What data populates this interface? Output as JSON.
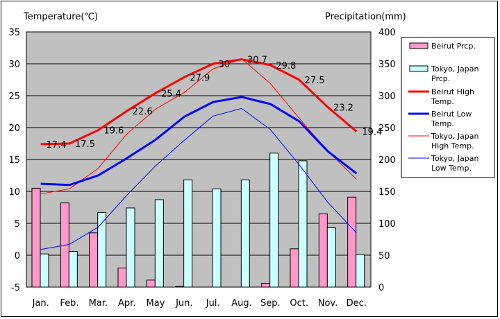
{
  "chart_data": {
    "type": "bar",
    "left_axis_title": "Temperature(℃)",
    "right_axis_title": "Precipitation(mm)",
    "categories": [
      "Jan.",
      "Feb.",
      "Mar.",
      "Apr.",
      "May",
      "Jun.",
      "Jul.",
      "Aug.",
      "Sep.",
      "Oct.",
      "Nov.",
      "Dec."
    ],
    "left_axis": {
      "min": -5,
      "max": 35,
      "ticks": [
        35,
        30,
        25,
        20,
        15,
        10,
        5,
        0,
        -5
      ]
    },
    "right_axis": {
      "min": 0,
      "max": 400,
      "ticks": [
        400,
        350,
        300,
        250,
        200,
        150,
        100,
        50,
        0
      ]
    },
    "grid": true,
    "plot_background": "#c0c0c0",
    "legend_position": "right",
    "series": [
      {
        "name": "Beirut Prcp.",
        "kind": "bar",
        "axis": "right",
        "color": "#ff99cc",
        "values": [
          155,
          132,
          85,
          30,
          11,
          1,
          0,
          0,
          6,
          60,
          115,
          141
        ]
      },
      {
        "name": "Tokyo, Japan Prcp.",
        "kind": "bar",
        "axis": "right",
        "color": "#ccffff",
        "values": [
          52,
          56,
          117,
          124,
          137,
          168,
          154,
          168,
          210,
          198,
          93,
          51
        ]
      },
      {
        "name": "Beirut High Temp.",
        "kind": "line",
        "axis": "left",
        "color": "#ff0000",
        "width": 3,
        "values": [
          17.4,
          17.5,
          19.6,
          22.6,
          25.4,
          27.9,
          30,
          30.7,
          29.8,
          27.5,
          23.2,
          19.4
        ],
        "labels": [
          "17.4",
          "17.5",
          "19.6",
          "22.6",
          "25.4",
          "27.9",
          "30",
          "30.7",
          "29.8",
          "27.5",
          "23.2",
          "19.4"
        ]
      },
      {
        "name": "Beirut Low Temp.",
        "kind": "line",
        "axis": "left",
        "color": "#0000ff",
        "width": 3,
        "values": [
          11.2,
          11,
          12.5,
          15.2,
          18.1,
          21.7,
          24,
          24.8,
          23.7,
          21,
          16.3,
          12.8
        ]
      },
      {
        "name": "Tokyo, Japan High Temp.",
        "kind": "line",
        "axis": "left",
        "color": "#ff0000",
        "width": 1,
        "values": [
          9.6,
          10.4,
          13.6,
          19,
          22.9,
          25.5,
          29.2,
          30.8,
          26.9,
          21.5,
          16.3,
          11.9
        ]
      },
      {
        "name": "Tokyo, Japan Low Temp.",
        "kind": "line",
        "axis": "left",
        "color": "#0000ff",
        "width": 1,
        "values": [
          0.9,
          1.7,
          4.4,
          9.4,
          14,
          18,
          21.8,
          23,
          19.7,
          14.2,
          8.3,
          3.5
        ]
      }
    ],
    "legend": [
      {
        "label_lines": [
          "Beirut Prcp."
        ],
        "kind": "bar",
        "color": "#ff99cc"
      },
      {
        "label_lines": [
          "Tokyo, Japan",
          "Prcp."
        ],
        "kind": "bar",
        "color": "#ccffff"
      },
      {
        "label_lines": [
          "Beirut High",
          "Temp."
        ],
        "kind": "line",
        "color": "#ff0000",
        "width": 3
      },
      {
        "label_lines": [
          "Beirut Low",
          "Temp."
        ],
        "kind": "line",
        "color": "#0000ff",
        "width": 3
      },
      {
        "label_lines": [
          "Tokyo, Japan",
          "High Temp."
        ],
        "kind": "line",
        "color": "#ff0000",
        "width": 1
      },
      {
        "label_lines": [
          "Tokyo, Japan",
          "Low Temp."
        ],
        "kind": "line",
        "color": "#0000ff",
        "width": 1
      }
    ]
  }
}
